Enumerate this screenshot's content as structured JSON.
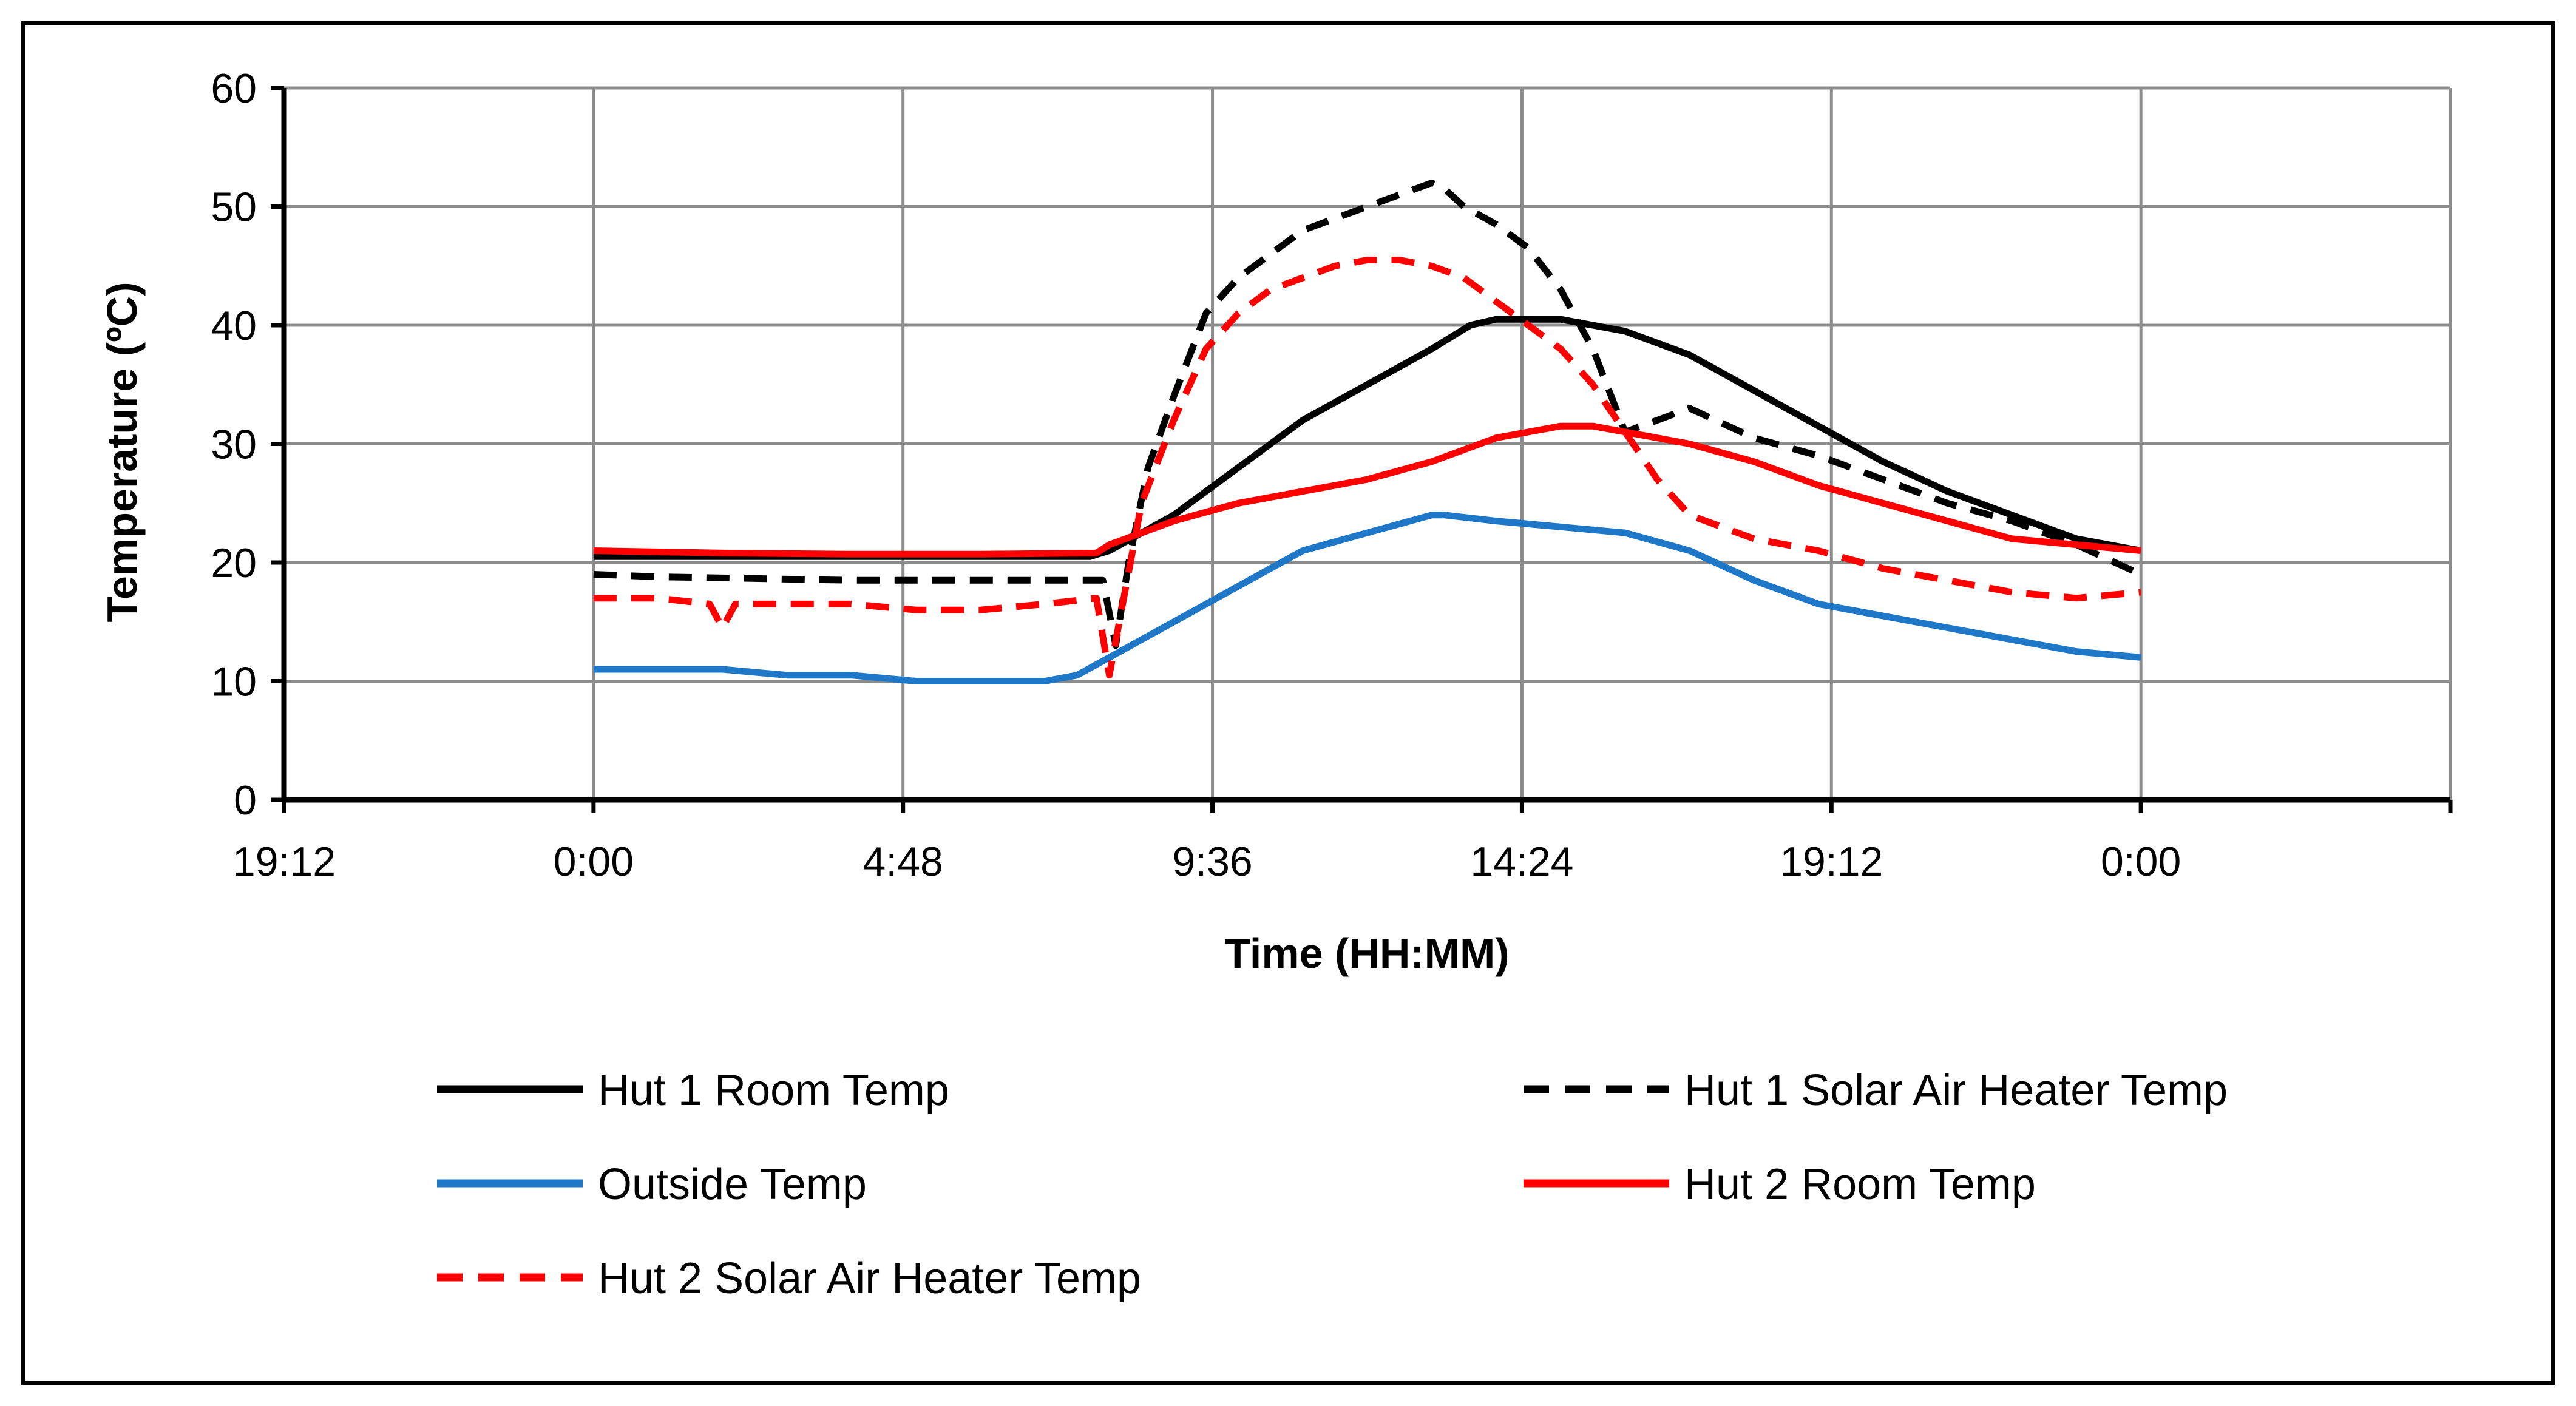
{
  "chart_data": {
    "type": "line",
    "title": "",
    "xlabel": "Time (HH:MM)",
    "ylabel": "Temperature (ºC)",
    "x_unit": "hours (relative to first 0:00)",
    "xlim": [
      -4.8,
      28.8
    ],
    "ylim": [
      0,
      60
    ],
    "x_ticks": [
      {
        "value": -4.8,
        "label": "19:12"
      },
      {
        "value": 0,
        "label": "0:00"
      },
      {
        "value": 4.8,
        "label": "4:48"
      },
      {
        "value": 9.6,
        "label": "9:36"
      },
      {
        "value": 14.4,
        "label": "14:24"
      },
      {
        "value": 19.2,
        "label": "19:12"
      },
      {
        "value": 24,
        "label": "0:00"
      }
    ],
    "y_ticks": [
      0,
      10,
      20,
      30,
      40,
      50,
      60
    ],
    "grid": true,
    "legend_position": "bottom",
    "series": [
      {
        "name": "Hut 1 Room Temp",
        "color": "#000000",
        "dash": "solid",
        "x": [
          0,
          2,
          4,
          6,
          7.7,
          8,
          9,
          10,
          11,
          12,
          13,
          13.6,
          14,
          15,
          16,
          17,
          18,
          19,
          20,
          21,
          22,
          23,
          24
        ],
        "y": [
          20.5,
          20.5,
          20.5,
          20.5,
          20.5,
          21,
          24,
          28,
          32,
          35,
          38,
          40,
          40.5,
          40.5,
          39.5,
          37.5,
          34.5,
          31.5,
          28.5,
          26,
          24,
          22,
          21
        ]
      },
      {
        "name": "Hut 1 Solar Air Heater Temp",
        "color": "#000000",
        "dash": "dashed",
        "x": [
          0,
          1,
          2,
          4,
          6,
          7.9,
          8.1,
          8.3,
          8.6,
          9,
          9.5,
          10,
          10.5,
          11,
          11.5,
          12,
          12.5,
          13,
          13.2,
          13.5,
          14,
          14.5,
          15,
          15.5,
          16,
          16.5,
          17,
          18,
          19,
          20,
          21,
          22,
          23,
          24
        ],
        "y": [
          19,
          18.8,
          18.7,
          18.5,
          18.5,
          18.5,
          13,
          20,
          28,
          34,
          41,
          44,
          46,
          48,
          49,
          50,
          51,
          52,
          51.5,
          50,
          48.5,
          46.5,
          43,
          38,
          31,
          32,
          33,
          30.5,
          29,
          27,
          25,
          23.5,
          21.5,
          19
        ]
      },
      {
        "name": "Outside Temp",
        "color": "#1f77c8",
        "dash": "solid",
        "x": [
          0,
          1,
          2,
          3,
          4,
          5,
          6,
          7,
          7.5,
          8,
          9,
          10,
          11,
          12,
          13,
          13.2,
          14,
          15,
          16,
          17,
          18,
          19,
          20,
          21,
          22,
          23,
          24
        ],
        "y": [
          11,
          11,
          11,
          10.5,
          10.5,
          10,
          10,
          10,
          10.5,
          12,
          15,
          18,
          21,
          22.5,
          24,
          24,
          23.5,
          23,
          22.5,
          21,
          18.5,
          16.5,
          15.5,
          14.5,
          13.5,
          12.5,
          12
        ]
      },
      {
        "name": "Hut 2 Room Temp",
        "color": "#ff0000",
        "dash": "solid",
        "x": [
          0,
          2,
          4,
          6,
          7.8,
          8,
          9,
          10,
          11,
          12,
          13,
          14,
          14.5,
          15,
          15.5,
          16,
          17,
          18,
          19,
          20,
          21,
          22,
          23,
          24
        ],
        "y": [
          21,
          20.8,
          20.7,
          20.7,
          20.8,
          21.5,
          23.5,
          25,
          26,
          27,
          28.5,
          30.5,
          31,
          31.5,
          31.5,
          31,
          30,
          28.5,
          26.5,
          25,
          23.5,
          22,
          21.5,
          21
        ]
      },
      {
        "name": "Hut 2 Solar Air Heater Temp",
        "color": "#ff0000",
        "dash": "dashed",
        "x": [
          0,
          1,
          1.8,
          2,
          2.2,
          3,
          4,
          5,
          6,
          7,
          7.8,
          8,
          8.5,
          9,
          9.5,
          10,
          10.5,
          11,
          11.5,
          12,
          12.5,
          13,
          13.5,
          14,
          14.5,
          15,
          15.5,
          16,
          16.5,
          17,
          18,
          19,
          20,
          21,
          22,
          23,
          24
        ],
        "y": [
          17,
          17,
          16.5,
          14.5,
          16.5,
          16.5,
          16.5,
          16,
          16,
          16.5,
          17,
          10.5,
          25,
          32,
          38,
          41,
          43,
          44,
          45,
          45.5,
          45.5,
          45,
          44,
          42,
          40,
          38,
          35,
          31,
          27,
          24,
          22,
          21,
          19.5,
          18.5,
          17.5,
          17,
          17.5
        ]
      }
    ]
  }
}
